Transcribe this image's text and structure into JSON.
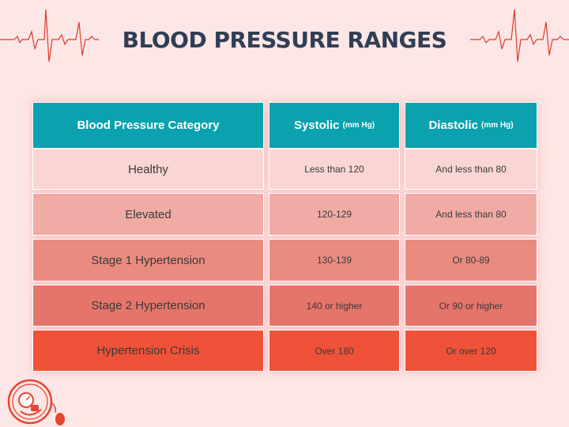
{
  "title": "BLOOD PRESSURE RANGES",
  "table": {
    "headers": {
      "category": "Blood Pressure Category",
      "systolic": "Systolic",
      "systolic_unit": "(mm Hg)",
      "diastolic": "Diastolic",
      "diastolic_unit": "(mm Hg)"
    },
    "rows": [
      {
        "category": "Healthy",
        "systolic": "Less than 120",
        "diastolic": "And less than 80",
        "color": "#f9d5d3"
      },
      {
        "category": "Elevated",
        "systolic": "120-129",
        "diastolic": "And less than 80",
        "color": "#f0aba5"
      },
      {
        "category": "Stage 1 Hypertension",
        "systolic": "130-139",
        "diastolic": "Or 80-89",
        "color": "#ea8b80"
      },
      {
        "category": "Stage 2 Hypertension",
        "systolic": "140 or higher",
        "diastolic": "Or 90 or higher",
        "color": "#e5756a"
      },
      {
        "category": "Hypertension Crisis",
        "systolic": "Over 180",
        "diastolic": "Or over 120",
        "color": "#ef5238"
      }
    ]
  },
  "colors": {
    "header_bg": "#0aa2ae",
    "title": "#2f3e55",
    "accent": "#e03a2a",
    "background": "#fde6e6"
  },
  "icons": [
    "ecg-line-icon",
    "blood-pressure-gauge-icon"
  ]
}
